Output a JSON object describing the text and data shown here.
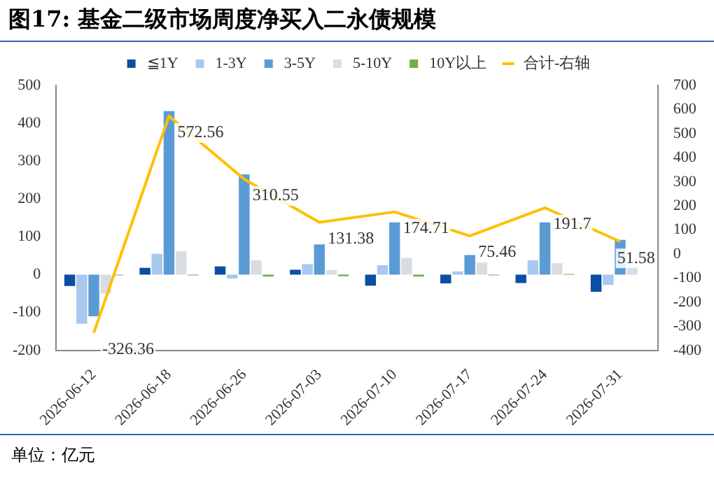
{
  "chart_data": {
    "type": "bar",
    "title": "图17: 基金二级市场周度净买入二永债规模",
    "categories": [
      "2026-06-12",
      "2026-06-18",
      "2026-06-26",
      "2026-07-03",
      "2026-07-10",
      "2026-07-17",
      "2026-07-24",
      "2026-07-31"
    ],
    "series": [
      {
        "name": "≦1Y",
        "color": "#0b4ea2",
        "values": [
          -30,
          18,
          22,
          13,
          -29,
          -23,
          -22,
          -45
        ]
      },
      {
        "name": "1-3Y",
        "color": "#a9c8ee",
        "values": [
          -130,
          55,
          -10,
          28,
          25,
          9,
          38,
          -27
        ]
      },
      {
        "name": "3-5Y",
        "color": "#5b9bd5",
        "values": [
          -110,
          432,
          265,
          80,
          138,
          52,
          138,
          92
        ]
      },
      {
        "name": "5-10Y",
        "color": "#d9dce0",
        "values": [
          -50,
          62,
          38,
          12,
          44,
          32,
          30,
          24
        ]
      },
      {
        "name": "10Y以上",
        "color": "#70ad47",
        "values": [
          -2,
          -2,
          -5,
          -4,
          -5,
          -2,
          2,
          0
        ]
      },
      {
        "name": "合计-右轴",
        "type": "line",
        "axis": "y2",
        "color": "#ffc000",
        "values": [
          -326.36,
          572.56,
          310.55,
          131.38,
          174.71,
          75.46,
          191.7,
          51.58
        ],
        "value_labels": [
          "-326.36",
          "572.56",
          "310.55",
          "131.38",
          "174.71",
          "75.46",
          "191.7",
          "51.58"
        ]
      }
    ],
    "ylim": [
      -200,
      500
    ],
    "yticks": [
      -200,
      -100,
      0,
      100,
      200,
      300,
      400,
      500
    ],
    "y2lim": [
      -400,
      700
    ],
    "y2ticks": [
      -400,
      -300,
      -200,
      -100,
      0,
      100,
      200,
      300,
      400,
      500,
      600,
      700
    ],
    "legend": "top",
    "grid": false,
    "marker": "none",
    "annotations": [
      "单位：亿元"
    ]
  }
}
